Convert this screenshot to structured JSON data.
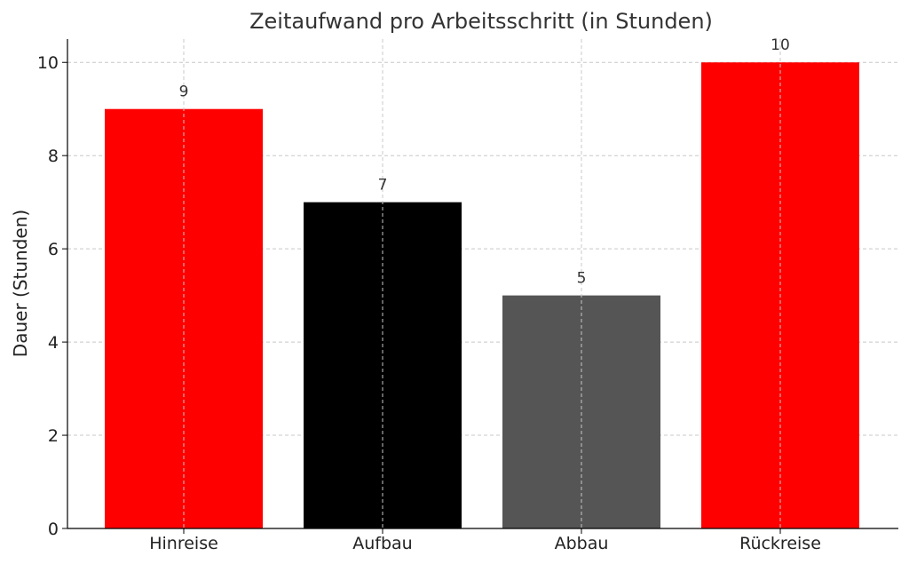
{
  "chart_data": {
    "type": "bar",
    "title": "Zeitaufwand pro Arbeitsschritt (in Stunden)",
    "xlabel": "",
    "ylabel": "Dauer (Stunden)",
    "categories": [
      "Hinreise",
      "Aufbau",
      "Abbau",
      "Rückreise"
    ],
    "values": [
      9,
      7,
      5,
      10
    ],
    "data_labels": [
      "9",
      "7",
      "5",
      "10"
    ],
    "colors": [
      "#ff0000",
      "#000000",
      "#555555",
      "#ff0000"
    ],
    "ylim": [
      0,
      10.5
    ],
    "yticks": [
      0,
      2,
      4,
      6,
      8,
      10
    ],
    "ytick_labels": [
      "0",
      "2",
      "4",
      "6",
      "8",
      "10"
    ],
    "grid": true,
    "legend": "none"
  }
}
